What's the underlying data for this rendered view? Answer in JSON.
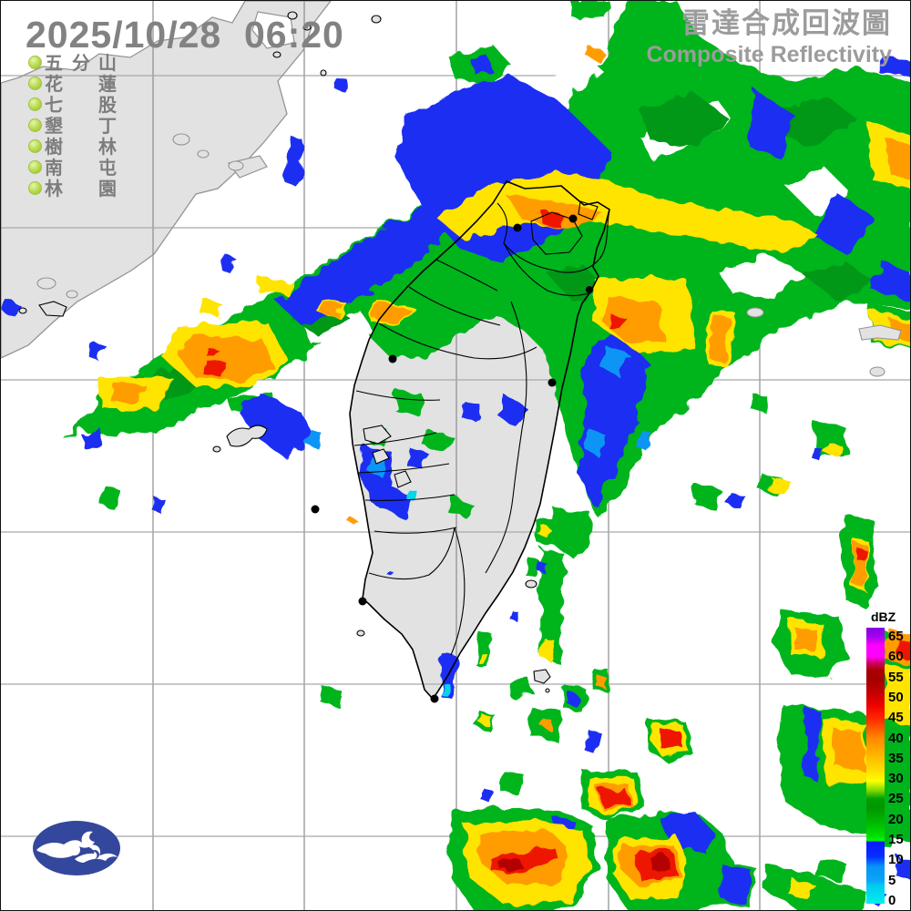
{
  "header": {
    "timestamp": "2025/10/28  06:20",
    "title_zh": "雷達合成回波圖",
    "title_en": "Composite Reflectivity"
  },
  "stations": {
    "items": [
      {
        "c1": "五",
        "c2": "分",
        "c3": "山"
      },
      {
        "c1": "花",
        "c2": "",
        "c3": "蓮"
      },
      {
        "c1": "七",
        "c2": "",
        "c3": "股"
      },
      {
        "c1": "墾",
        "c2": "",
        "c3": "丁"
      },
      {
        "c1": "樹",
        "c2": "",
        "c3": "林"
      },
      {
        "c1": "南",
        "c2": "",
        "c3": "屯"
      },
      {
        "c1": "林",
        "c2": "",
        "c3": "園"
      }
    ]
  },
  "colorbar": {
    "unit": "dBZ",
    "tick_values": [
      65,
      60,
      55,
      50,
      45,
      40,
      35,
      30,
      25,
      20,
      15,
      10,
      5,
      0
    ],
    "palette": [
      {
        "dbz": 65,
        "color": "#9b00e8"
      },
      {
        "dbz": 60,
        "color": "#ff00ff"
      },
      {
        "dbz": 55,
        "color": "#a40000"
      },
      {
        "dbz": 50,
        "color": "#dc0000"
      },
      {
        "dbz": 45,
        "color": "#ff3c00"
      },
      {
        "dbz": 40,
        "color": "#ff9000"
      },
      {
        "dbz": 35,
        "color": "#ffc800"
      },
      {
        "dbz": 30,
        "color": "#ffff00"
      },
      {
        "dbz": 25,
        "color": "#009600"
      },
      {
        "dbz": 20,
        "color": "#00b400"
      },
      {
        "dbz": 15,
        "color": "#00e400"
      },
      {
        "dbz": 10,
        "color": "#0430ff"
      },
      {
        "dbz": 5,
        "color": "#0794f5"
      },
      {
        "dbz": 0,
        "color": "#00eef0"
      }
    ]
  },
  "palette": {
    "sea": "#ffffff",
    "land": "#e2e2e2",
    "mainland_coast": "#949494",
    "taiwan_coast": "#000000",
    "grid": "#8c8c8c",
    "timestamp_gray": "#828282",
    "title_gray": "#9c9c9c",
    "station_dot_green": "#a6cc3a",
    "logo_blue": "#33479c"
  }
}
